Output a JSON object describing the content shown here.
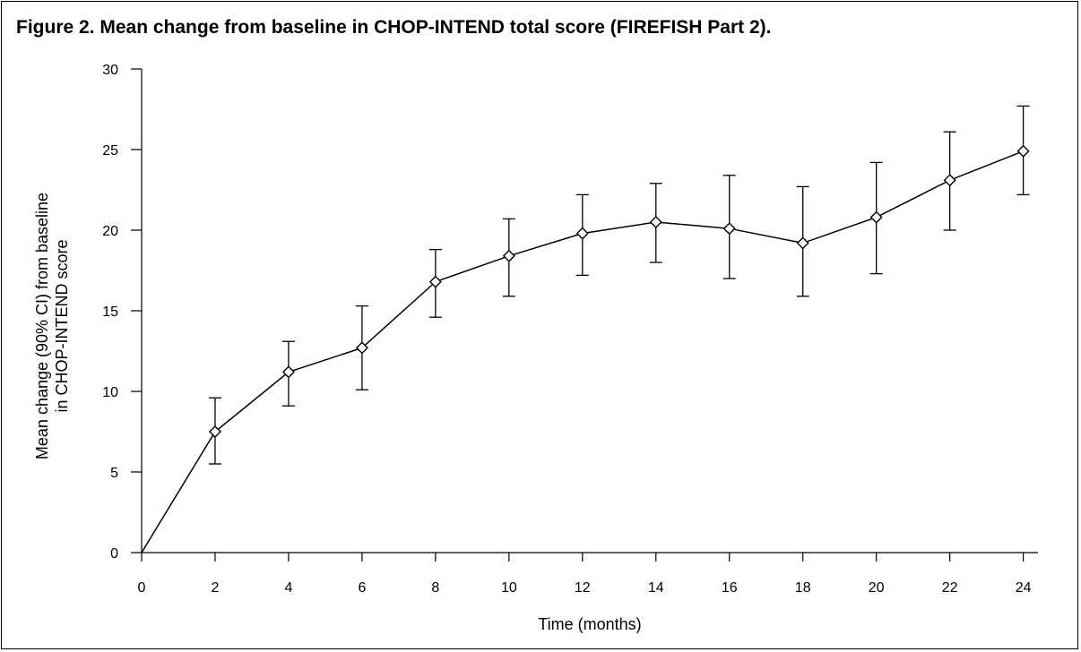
{
  "figure": {
    "title": "Figure 2. Mean change from baseline in CHOP-INTEND total score (FIREFISH Part 2)."
  },
  "chart_data": {
    "type": "line",
    "title": "Figure 2. Mean change from baseline in CHOP-INTEND total score (FIREFISH Part 2).",
    "xlabel": "Time (months)",
    "ylabel_lines": [
      "Mean change (90% CI) from baseline",
      "in CHOP-INTEND score"
    ],
    "xlim": [
      0,
      24.4
    ],
    "ylim": [
      0,
      30
    ],
    "x_ticks": [
      0,
      2,
      4,
      6,
      8,
      10,
      12,
      14,
      16,
      18,
      20,
      22,
      24
    ],
    "y_ticks": [
      0,
      5,
      10,
      15,
      20,
      25,
      30
    ],
    "grid": false,
    "marker": "diamond",
    "colors": {
      "line": "#000000",
      "axis": "#000000"
    },
    "series": [
      {
        "points": [
          {
            "x": 0,
            "y": 0,
            "lower": null,
            "upper": null
          },
          {
            "x": 2,
            "y": 7.5,
            "lower": 5.5,
            "upper": 9.6
          },
          {
            "x": 4,
            "y": 11.2,
            "lower": 9.1,
            "upper": 13.1
          },
          {
            "x": 6,
            "y": 12.7,
            "lower": 10.1,
            "upper": 15.3
          },
          {
            "x": 8,
            "y": 16.8,
            "lower": 14.6,
            "upper": 18.8
          },
          {
            "x": 10,
            "y": 18.4,
            "lower": 15.9,
            "upper": 20.7
          },
          {
            "x": 12,
            "y": 19.8,
            "lower": 17.2,
            "upper": 22.2
          },
          {
            "x": 14,
            "y": 20.5,
            "lower": 18.0,
            "upper": 22.9
          },
          {
            "x": 16,
            "y": 20.1,
            "lower": 17.0,
            "upper": 23.4
          },
          {
            "x": 18,
            "y": 19.2,
            "lower": 15.9,
            "upper": 22.7
          },
          {
            "x": 20,
            "y": 20.8,
            "lower": 17.3,
            "upper": 24.2
          },
          {
            "x": 22,
            "y": 23.1,
            "lower": 20.0,
            "upper": 26.1
          },
          {
            "x": 24,
            "y": 24.9,
            "lower": 22.2,
            "upper": 27.7
          }
        ]
      }
    ]
  }
}
